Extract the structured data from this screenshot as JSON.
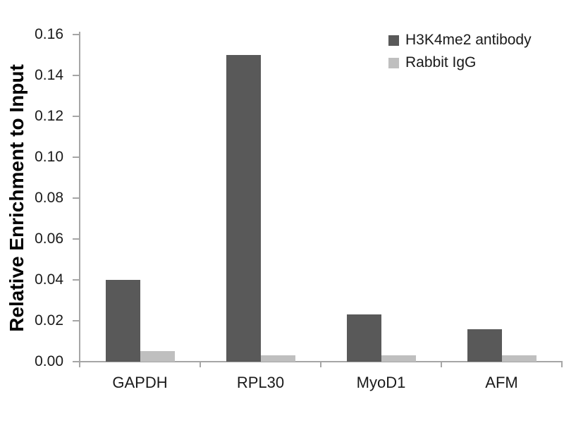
{
  "chart_data": {
    "type": "bar",
    "title": "",
    "xlabel": "",
    "ylabel": "Relative Enrichment to Input",
    "categories": [
      "GAPDH",
      "RPL30",
      "MyoD1",
      "AFM"
    ],
    "series": [
      {
        "name": "H3K4me2 antibody",
        "color": "#595959",
        "values": [
          0.04,
          0.15,
          0.023,
          0.016
        ]
      },
      {
        "name": "Rabbit IgG",
        "color": "#bfbfbf",
        "values": [
          0.005,
          0.003,
          0.003,
          0.003
        ]
      }
    ],
    "ylim": [
      0,
      0.16
    ],
    "ytick_labels": [
      "0.00",
      "0.02",
      "0.04",
      "0.06",
      "0.08",
      "0.10",
      "0.12",
      "0.14",
      "0.16"
    ],
    "grid": false,
    "legend_position": "top-right",
    "axis_color": "#a6a6a6",
    "text_color": "#000000",
    "background_color": "#ffffff"
  }
}
